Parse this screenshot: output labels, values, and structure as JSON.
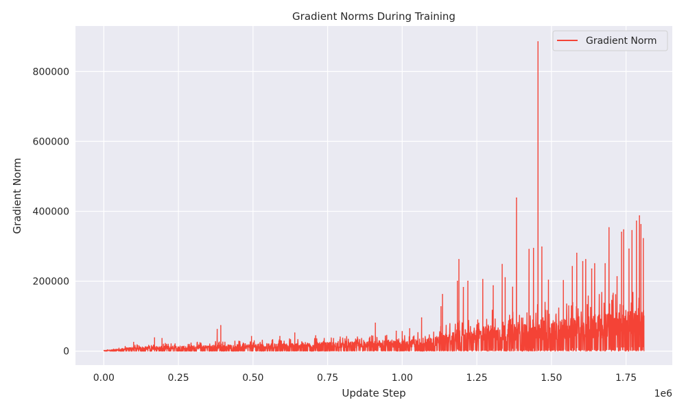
{
  "chart_data": {
    "type": "line",
    "title": "Gradient Norms During Training",
    "xlabel": "Update Step",
    "ylabel": "Gradient Norm",
    "x_offset_label": "1e6",
    "xlim": [
      -95000,
      1905000
    ],
    "ylim": [
      -40000,
      930000
    ],
    "x_ticks": [
      0,
      250000,
      500000,
      750000,
      1000000,
      1250000,
      1500000,
      1750000
    ],
    "x_tick_labels": [
      "0.00",
      "0.25",
      "0.50",
      "0.75",
      "1.00",
      "1.25",
      "1.50",
      "1.75"
    ],
    "y_ticks": [
      0,
      200000,
      400000,
      600000,
      800000
    ],
    "y_tick_labels": [
      "0",
      "200000",
      "400000",
      "600000",
      "800000"
    ],
    "grid": true,
    "legend_position": "top-right",
    "x_max_step": 1810000,
    "series": [
      {
        "name": "Gradient Norm",
        "color": "#f44336",
        "envelope": [
          {
            "x": 0,
            "y": 2000
          },
          {
            "x": 50000,
            "y": 6000
          },
          {
            "x": 100000,
            "y": 12000
          },
          {
            "x": 250000,
            "y": 15000
          },
          {
            "x": 500000,
            "y": 20000
          },
          {
            "x": 750000,
            "y": 25000
          },
          {
            "x": 900000,
            "y": 28000
          },
          {
            "x": 1000000,
            "y": 30000
          },
          {
            "x": 1100000,
            "y": 40000
          },
          {
            "x": 1200000,
            "y": 60000
          },
          {
            "x": 1300000,
            "y": 75000
          },
          {
            "x": 1400000,
            "y": 80000
          },
          {
            "x": 1500000,
            "y": 90000
          },
          {
            "x": 1600000,
            "y": 100000
          },
          {
            "x": 1700000,
            "y": 110000
          },
          {
            "x": 1810000,
            "y": 125000
          }
        ],
        "spikes": [
          {
            "x": 100000,
            "y": 25000
          },
          {
            "x": 170000,
            "y": 38000
          },
          {
            "x": 195000,
            "y": 36000
          },
          {
            "x": 380000,
            "y": 62000
          },
          {
            "x": 392000,
            "y": 73000
          },
          {
            "x": 495000,
            "y": 42000
          },
          {
            "x": 590000,
            "y": 42000
          },
          {
            "x": 640000,
            "y": 52000
          },
          {
            "x": 710000,
            "y": 44000
          },
          {
            "x": 770000,
            "y": 36000
          },
          {
            "x": 910000,
            "y": 80000
          },
          {
            "x": 980000,
            "y": 57000
          },
          {
            "x": 1000000,
            "y": 56000
          },
          {
            "x": 1025000,
            "y": 64000
          },
          {
            "x": 1065000,
            "y": 95000
          },
          {
            "x": 1130000,
            "y": 127000
          },
          {
            "x": 1135000,
            "y": 162000
          },
          {
            "x": 1185000,
            "y": 200000
          },
          {
            "x": 1190000,
            "y": 262000
          },
          {
            "x": 1205000,
            "y": 182000
          },
          {
            "x": 1220000,
            "y": 200000
          },
          {
            "x": 1270000,
            "y": 205000
          },
          {
            "x": 1305000,
            "y": 187000
          },
          {
            "x": 1335000,
            "y": 248000
          },
          {
            "x": 1345000,
            "y": 210000
          },
          {
            "x": 1370000,
            "y": 183000
          },
          {
            "x": 1383000,
            "y": 438000
          },
          {
            "x": 1425000,
            "y": 291000
          },
          {
            "x": 1440000,
            "y": 294000
          },
          {
            "x": 1455000,
            "y": 885000
          },
          {
            "x": 1468000,
            "y": 298000
          },
          {
            "x": 1490000,
            "y": 203000
          },
          {
            "x": 1540000,
            "y": 202000
          },
          {
            "x": 1570000,
            "y": 242000
          },
          {
            "x": 1585000,
            "y": 280000
          },
          {
            "x": 1605000,
            "y": 256000
          },
          {
            "x": 1615000,
            "y": 262000
          },
          {
            "x": 1635000,
            "y": 235000
          },
          {
            "x": 1645000,
            "y": 250000
          },
          {
            "x": 1680000,
            "y": 250000
          },
          {
            "x": 1693000,
            "y": 353000
          },
          {
            "x": 1720000,
            "y": 213000
          },
          {
            "x": 1735000,
            "y": 340000
          },
          {
            "x": 1742000,
            "y": 347000
          },
          {
            "x": 1760000,
            "y": 292000
          },
          {
            "x": 1770000,
            "y": 345000
          },
          {
            "x": 1785000,
            "y": 372000
          },
          {
            "x": 1795000,
            "y": 387000
          },
          {
            "x": 1800000,
            "y": 362000
          },
          {
            "x": 1808000,
            "y": 322000
          }
        ]
      }
    ]
  }
}
